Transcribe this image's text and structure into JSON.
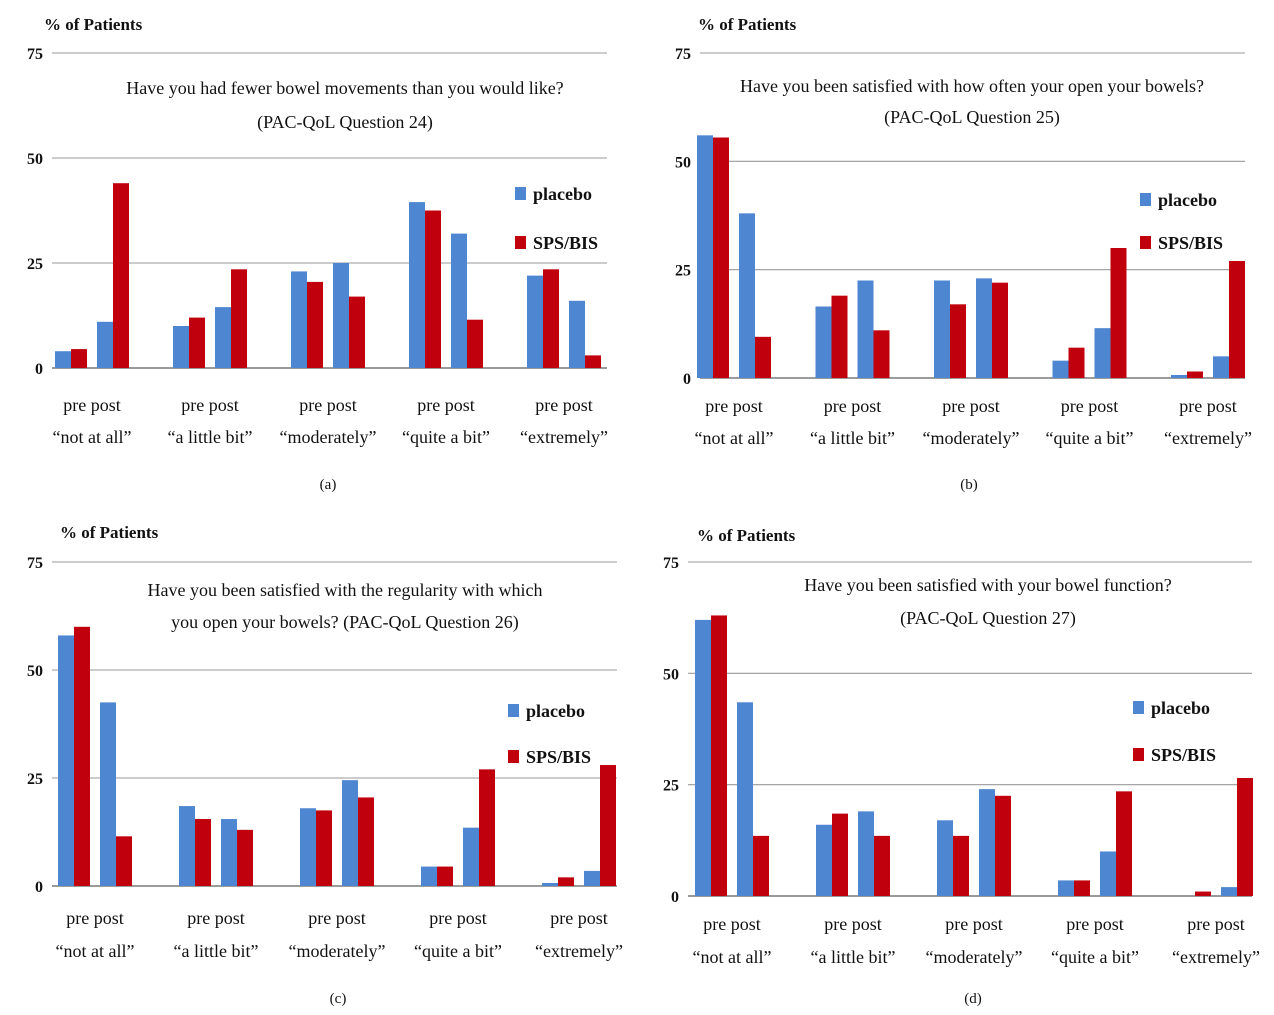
{
  "chart_data": [
    {
      "type": "bar",
      "panel": "(a)",
      "ylabel": "% of Patients",
      "title_lines": [
        "Have you had fewer bowel movements than you would like?",
        "(PAC-QoL Question 24)"
      ],
      "yticks": [
        0,
        25,
        50,
        75
      ],
      "ylim": [
        0,
        75
      ],
      "grid": true,
      "legend_position": "right",
      "categories": [
        "“not at all”",
        "“a little bit”",
        "“moderately”",
        "“quite a bit”",
        "“extremely”"
      ],
      "sublabels": [
        "pre",
        "post"
      ],
      "series": [
        {
          "name": "placebo",
          "pre": [
            4,
            10,
            23,
            39.5,
            22
          ],
          "post": [
            11,
            14.5,
            25,
            32,
            16
          ]
        },
        {
          "name": "SPS/BIS",
          "pre": [
            4.5,
            12,
            20.5,
            37.5,
            23.5
          ],
          "post": [
            44,
            23.5,
            17,
            11.5,
            3
          ]
        }
      ]
    },
    {
      "type": "bar",
      "panel": "(b)",
      "ylabel": "% of Patients",
      "title_lines": [
        "Have you been satisfied with how often your open your bowels?",
        "(PAC-QoL Question 25)"
      ],
      "yticks": [
        0,
        25,
        50,
        75
      ],
      "ylim": [
        0,
        75
      ],
      "grid": true,
      "legend_position": "right",
      "categories": [
        "“not at all”",
        "“a little bit”",
        "“moderately”",
        "“quite a bit”",
        "“extremely”"
      ],
      "sublabels": [
        "pre",
        "post"
      ],
      "series": [
        {
          "name": "placebo",
          "pre": [
            56,
            16.5,
            22.5,
            4,
            0.7
          ],
          "post": [
            38,
            22.5,
            23,
            11.5,
            5
          ]
        },
        {
          "name": "SPS/BIS",
          "pre": [
            55.5,
            19,
            17,
            7,
            1.5
          ],
          "post": [
            9.5,
            11,
            22,
            30,
            27
          ]
        }
      ]
    },
    {
      "type": "bar",
      "panel": "(c)",
      "ylabel": "% of Patients",
      "title_lines": [
        "Have you been satisfied with the regularity with which",
        "you open your bowels? (PAC-QoL Question 26)"
      ],
      "yticks": [
        0,
        25,
        50,
        75
      ],
      "ylim": [
        0,
        75
      ],
      "grid": true,
      "legend_position": "right",
      "categories": [
        "“not at all”",
        "“a little bit”",
        "“moderately”",
        "“quite a bit”",
        "“extremely”"
      ],
      "sublabels": [
        "pre",
        "post"
      ],
      "series": [
        {
          "name": "placebo",
          "pre": [
            58,
            18.5,
            18,
            4.5,
            0.7
          ],
          "post": [
            42.5,
            15.5,
            24.5,
            13.5,
            3.5
          ]
        },
        {
          "name": "SPS/BIS",
          "pre": [
            60,
            15.5,
            17.5,
            4.5,
            2
          ],
          "post": [
            11.5,
            13,
            20.5,
            27,
            28
          ]
        }
      ]
    },
    {
      "type": "bar",
      "panel": "(d)",
      "ylabel": "% of Patients",
      "title_lines": [
        "Have you been satisfied with your bowel function?",
        "(PAC-QoL Question 27)"
      ],
      "yticks": [
        0,
        25,
        50,
        75
      ],
      "ylim": [
        0,
        75
      ],
      "grid": true,
      "legend_position": "right",
      "categories": [
        "“not at all”",
        "“a little bit”",
        "“moderately”",
        "“quite a bit”",
        "“extremely”"
      ],
      "sublabels": [
        "pre",
        "post"
      ],
      "series": [
        {
          "name": "placebo",
          "pre": [
            62,
            16,
            17,
            3.5,
            0
          ],
          "post": [
            43.5,
            19,
            24,
            10,
            2
          ]
        },
        {
          "name": "SPS/BIS",
          "pre": [
            63,
            18.5,
            13.5,
            3.5,
            1
          ],
          "post": [
            13.5,
            13.5,
            22.5,
            23.5,
            26.5
          ]
        }
      ]
    }
  ],
  "colors": {
    "placebo": "#4f86d1",
    "SPS/BIS": "#c0000c",
    "grid": "#9a9a9a",
    "text": "#111111"
  }
}
